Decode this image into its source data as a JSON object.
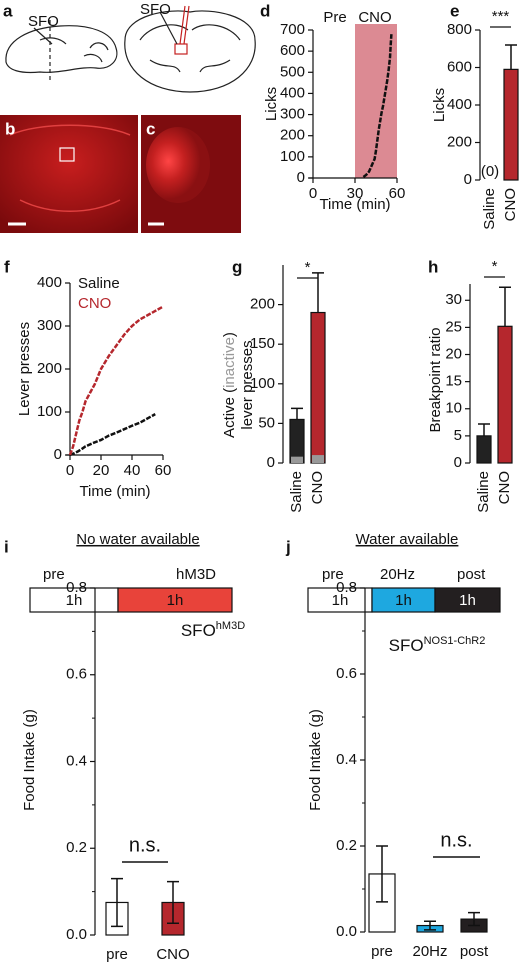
{
  "schematic": {
    "panel": "a",
    "labels": [
      "SFO",
      "SFO"
    ]
  },
  "images": [
    {
      "panel": "b"
    },
    {
      "panel": "c"
    }
  ],
  "chart_data": [
    {
      "type": "line",
      "panel": "d",
      "xlabel": "Time (min)",
      "ylabel": "Licks",
      "annotations": [
        "Pre",
        "CNO"
      ],
      "highlight": {
        "x": [
          30,
          60
        ],
        "color": "#dc8a93"
      },
      "x": [
        36,
        38,
        40,
        42,
        44,
        45,
        46,
        47,
        48,
        49,
        50,
        51,
        52,
        53,
        54,
        55,
        55.5,
        56
      ],
      "values": [
        5,
        15,
        30,
        60,
        90,
        130,
        180,
        230,
        270,
        310,
        340,
        380,
        420,
        460,
        510,
        570,
        630,
        680
      ],
      "color": "#111111",
      "xlim": [
        0,
        60
      ],
      "xticks": [
        0,
        30,
        60
      ],
      "ylim": [
        0,
        700
      ],
      "yticks": [
        0,
        100,
        200,
        300,
        400,
        500,
        600,
        700
      ]
    },
    {
      "type": "bar",
      "panel": "e",
      "ylabel": "Licks",
      "categories": [
        "Saline",
        "CNO"
      ],
      "values": [
        0,
        590
      ],
      "value_labels": [
        "(0)",
        null
      ],
      "errors": [
        0,
        130
      ],
      "error_style": "upper",
      "colors": [
        "#222222",
        "#b5272d"
      ],
      "significance": "***",
      "ylim": [
        0,
        800
      ],
      "yticks": [
        0,
        200,
        400,
        600,
        800
      ]
    },
    {
      "type": "line",
      "panel": "f",
      "xlabel": "Time (min)",
      "ylabel": "Lever presses",
      "legend": "top-left",
      "series": [
        {
          "name": "Saline",
          "color": "#111111",
          "x": [
            0,
            2,
            5,
            8,
            10,
            15,
            20,
            25,
            30,
            35,
            40,
            45,
            50,
            55
          ],
          "values": [
            0,
            3,
            8,
            15,
            20,
            28,
            35,
            45,
            52,
            60,
            68,
            75,
            85,
            95
          ]
        },
        {
          "name": "CNO",
          "color": "#b5272d",
          "x": [
            0,
            2,
            4,
            6,
            8,
            10,
            13,
            16,
            20,
            25,
            30,
            35,
            40,
            45,
            50,
            55,
            60
          ],
          "values": [
            0,
            20,
            50,
            80,
            100,
            125,
            145,
            165,
            200,
            230,
            255,
            280,
            300,
            315,
            325,
            335,
            345
          ]
        }
      ],
      "xlim": [
        0,
        60
      ],
      "xticks": [
        0,
        20,
        40,
        60
      ],
      "ylim": [
        0,
        400
      ],
      "yticks": [
        0,
        100,
        200,
        300,
        400
      ]
    },
    {
      "type": "bar",
      "panel": "g",
      "ylabel_parts": [
        "Active (",
        "inactive",
        ")",
        "lever presses"
      ],
      "categories": [
        "Saline",
        "CNO"
      ],
      "values": [
        55,
        190
      ],
      "overlay_values": [
        8,
        10
      ],
      "overlay_color": "#999999",
      "errors": [
        14,
        50
      ],
      "error_style": "upper",
      "colors": [
        "#222222",
        "#b5272d"
      ],
      "significance": "*",
      "ylim": [
        0,
        250
      ],
      "yticks": [
        0,
        50,
        100,
        150,
        200
      ]
    },
    {
      "type": "bar",
      "panel": "h",
      "ylabel": "Breakpoint ratio",
      "categories": [
        "Saline",
        "CNO"
      ],
      "values": [
        5,
        25.2
      ],
      "errors": [
        2.2,
        7.2
      ],
      "error_style": "upper",
      "colors": [
        "#222222",
        "#b5272d"
      ],
      "significance": "*",
      "ylim": [
        0,
        33
      ],
      "yticks": [
        0,
        5,
        10,
        15,
        20,
        25,
        30
      ]
    },
    {
      "type": "bar",
      "panel": "i",
      "heading": "No water available",
      "timeline": [
        {
          "label": "pre",
          "duration": "1h",
          "color": "#ffffff"
        },
        {
          "label": "hM3D",
          "duration": "1h",
          "color": "#e8433a"
        }
      ],
      "title": "SFO",
      "title_sup": "hM3D",
      "ylabel": "Food Intake (g)",
      "categories": [
        "pre",
        "CNO"
      ],
      "values": [
        0.075,
        0.075
      ],
      "errors": [
        0.055,
        0.048
      ],
      "error_style": "both",
      "colors": [
        "#ffffff",
        "#b5272d"
      ],
      "significance": "n.s.",
      "ylim": [
        0,
        0.8
      ],
      "yticks": [
        {
          "value": 0,
          "label": "0.0"
        },
        0.2,
        0.4,
        0.6,
        0.8
      ],
      "minor_yticks": [
        0.1,
        0.3,
        0.5,
        0.7
      ]
    },
    {
      "type": "bar",
      "panel": "j",
      "heading": "Water available",
      "timeline": [
        {
          "label": "pre",
          "duration": "1h",
          "color": "#ffffff"
        },
        {
          "label": "20Hz",
          "duration": "1h",
          "color": "#1ea8e0"
        },
        {
          "label": "post",
          "duration": "1h",
          "color": "#231f20"
        }
      ],
      "title": "SFO",
      "title_sup": "NOS1-ChR2",
      "ylabel": "Food Intake (g)",
      "categories": [
        "pre",
        "20Hz",
        "post"
      ],
      "values": [
        0.135,
        0.015,
        0.03
      ],
      "errors": [
        0.065,
        0.01,
        0.015
      ],
      "error_style": "both",
      "colors": [
        "#ffffff",
        "#1ea8e0",
        "#231f20"
      ],
      "significance": "n.s.",
      "ylim": [
        0,
        0.8
      ],
      "yticks": [
        {
          "value": 0,
          "label": "0.0"
        },
        0.2,
        0.4,
        0.6,
        0.8
      ],
      "minor_yticks": [
        0.1,
        0.3,
        0.5,
        0.7
      ]
    }
  ]
}
